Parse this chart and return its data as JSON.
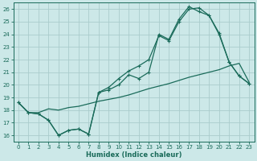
{
  "xlabel": "Humidex (Indice chaleur)",
  "xlim": [
    -0.5,
    23.5
  ],
  "ylim": [
    15.5,
    26.5
  ],
  "yticks": [
    16,
    17,
    18,
    19,
    20,
    21,
    22,
    23,
    24,
    25,
    26
  ],
  "xticks": [
    0,
    1,
    2,
    3,
    4,
    5,
    6,
    7,
    8,
    9,
    10,
    11,
    12,
    13,
    14,
    15,
    16,
    17,
    18,
    19,
    20,
    21,
    22,
    23
  ],
  "bg_color": "#cce8e8",
  "grid_color": "#aacccc",
  "line_color": "#1a6b5a",
  "line1_x": [
    0,
    1,
    2,
    3,
    4,
    5,
    6,
    7,
    8,
    9,
    10,
    11,
    12,
    13,
    14,
    15,
    16,
    17,
    18,
    19,
    20,
    21,
    22,
    23
  ],
  "line1_y": [
    18.6,
    17.8,
    17.8,
    18.1,
    18.0,
    18.2,
    18.3,
    18.5,
    18.7,
    18.85,
    19.0,
    19.2,
    19.45,
    19.7,
    19.9,
    20.1,
    20.35,
    20.6,
    20.8,
    21.0,
    21.2,
    21.5,
    21.7,
    20.2
  ],
  "line2_x": [
    0,
    1,
    2,
    3,
    4,
    5,
    6,
    7,
    8,
    9,
    10,
    11,
    12,
    13,
    14,
    15,
    16,
    17,
    18,
    19,
    20,
    21,
    22,
    23
  ],
  "line2_y": [
    18.6,
    17.8,
    17.7,
    17.2,
    16.0,
    16.4,
    16.5,
    16.1,
    19.4,
    19.8,
    20.5,
    21.1,
    21.5,
    22.0,
    23.9,
    23.5,
    25.0,
    26.0,
    26.1,
    25.5,
    24.0,
    21.8,
    20.7,
    20.1
  ],
  "line3_x": [
    0,
    1,
    2,
    3,
    4,
    5,
    6,
    7,
    8,
    9,
    10,
    11,
    12,
    13,
    14,
    15,
    16,
    17,
    18,
    19,
    20,
    21,
    22,
    23
  ],
  "line3_y": [
    18.6,
    17.8,
    17.7,
    17.2,
    16.0,
    16.4,
    16.5,
    16.1,
    19.4,
    19.6,
    20.0,
    20.8,
    20.5,
    21.0,
    24.0,
    23.6,
    25.2,
    26.2,
    25.8,
    25.5,
    24.1,
    21.8,
    20.7,
    20.1
  ]
}
